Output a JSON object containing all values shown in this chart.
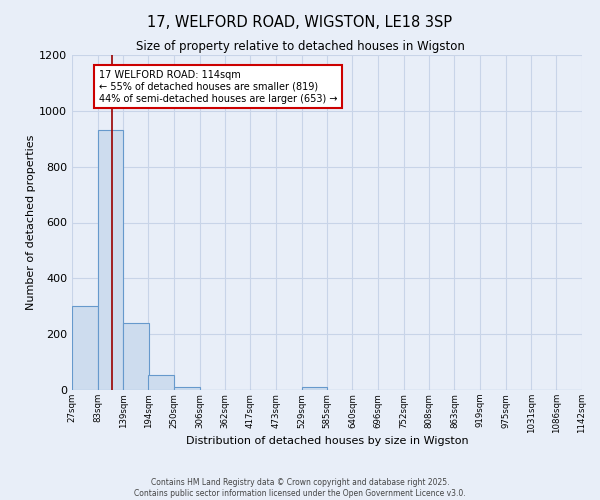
{
  "title": "17, WELFORD ROAD, WIGSTON, LE18 3SP",
  "subtitle": "Size of property relative to detached houses in Wigston",
  "xlabel": "Distribution of detached houses by size in Wigston",
  "ylabel": "Number of detached properties",
  "bin_labels": [
    "27sqm",
    "83sqm",
    "139sqm",
    "194sqm",
    "250sqm",
    "306sqm",
    "362sqm",
    "417sqm",
    "473sqm",
    "529sqm",
    "585sqm",
    "640sqm",
    "696sqm",
    "752sqm",
    "808sqm",
    "863sqm",
    "919sqm",
    "975sqm",
    "1031sqm",
    "1086sqm",
    "1142sqm"
  ],
  "bin_edges": [
    27,
    83,
    139,
    194,
    250,
    306,
    362,
    417,
    473,
    529,
    585,
    640,
    696,
    752,
    808,
    863,
    919,
    975,
    1031,
    1086,
    1142
  ],
  "bar_heights": [
    300,
    930,
    240,
    55,
    12,
    0,
    0,
    0,
    0,
    12,
    0,
    0,
    0,
    0,
    0,
    0,
    0,
    0,
    0,
    0
  ],
  "bar_color": "#cddcee",
  "bar_edge_color": "#6699cc",
  "grid_color": "#c8d4e8",
  "background_color": "#e8eef8",
  "red_line_x": 114,
  "annotation_text": "17 WELFORD ROAD: 114sqm\n← 55% of detached houses are smaller (819)\n44% of semi-detached houses are larger (653) →",
  "annotation_box_facecolor": "#ffffff",
  "annotation_box_edgecolor": "#cc0000",
  "ylim": [
    0,
    1200
  ],
  "yticks": [
    0,
    200,
    400,
    600,
    800,
    1000,
    1200
  ],
  "footer1": "Contains HM Land Registry data © Crown copyright and database right 2025.",
  "footer2": "Contains public sector information licensed under the Open Government Licence v3.0."
}
